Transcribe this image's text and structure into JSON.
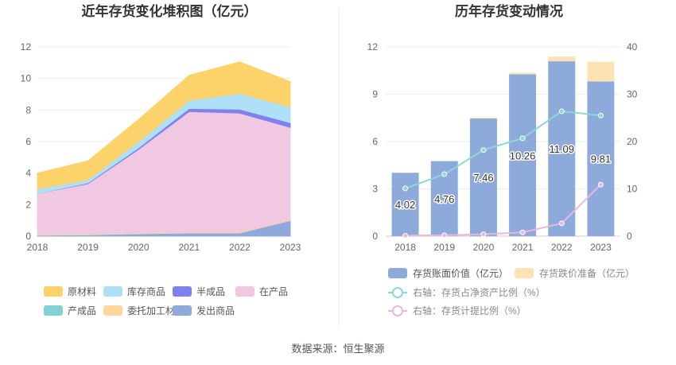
{
  "footer": {
    "source": "数据来源：恒生聚源"
  },
  "chart_data": [
    {
      "type": "area",
      "title": "近年存货变化堆积图（亿元）",
      "x": [
        "2018",
        "2019",
        "2020",
        "2021",
        "2022",
        "2023"
      ],
      "ylim": [
        0,
        12
      ],
      "yticks": [
        "0",
        "2",
        "4",
        "6",
        "8",
        "10",
        "12"
      ],
      "grid": true,
      "legend_placement": "bottom",
      "series": [
        {
          "name": "发出商品",
          "color": "#8eaadb",
          "values": [
            0.05,
            0.08,
            0.15,
            0.2,
            0.2,
            1.0
          ]
        },
        {
          "name": "委托加工材料",
          "color": "#fdd89a",
          "values": [
            0.05,
            0.05,
            0.05,
            0.05,
            0.05,
            0.05
          ]
        },
        {
          "name": "产成品",
          "color": "#7fd3d4",
          "values": [
            0.0,
            0.0,
            0.0,
            0.0,
            0.0,
            0.0
          ]
        },
        {
          "name": "在产品",
          "color": "#f0c8e2",
          "values": [
            2.6,
            3.2,
            5.3,
            7.65,
            7.55,
            5.85
          ]
        },
        {
          "name": "半成品",
          "color": "#8080f0",
          "values": [
            0.0,
            0.05,
            0.1,
            0.2,
            0.25,
            0.3
          ]
        },
        {
          "name": "库存商品",
          "color": "#aee0f7",
          "values": [
            0.3,
            0.2,
            0.4,
            0.5,
            1.0,
            1.0
          ]
        },
        {
          "name": "原材料",
          "color": "#fcd36a",
          "values": [
            1.0,
            1.2,
            1.4,
            1.6,
            2.0,
            1.6
          ]
        }
      ],
      "legend_order": [
        "原材料",
        "库存商品",
        "半成品",
        "在产品",
        "产成品",
        "委托加工材料",
        "发出商品"
      ]
    },
    {
      "type": "bar",
      "title": "历年存货变动情况",
      "categories": [
        "2018",
        "2019",
        "2020",
        "2021",
        "2022",
        "2023"
      ],
      "ylim_left": [
        0,
        12
      ],
      "yticks_left": [
        "0",
        "3",
        "6",
        "9",
        "12"
      ],
      "ylim_right": [
        0,
        40
      ],
      "yticks_right": [
        "0",
        "10",
        "20",
        "30",
        "40"
      ],
      "grid": true,
      "legend_placement": "bottom",
      "series": [
        {
          "name": "存货账面价值（亿元）",
          "type": "bar",
          "axis": "left",
          "color": "#8eaadb",
          "values": [
            4.02,
            4.76,
            7.46,
            10.26,
            11.09,
            9.81
          ],
          "labels": [
            "4.02",
            "4.76",
            "7.46",
            "10.26",
            "11.09",
            "9.81"
          ]
        },
        {
          "name": "存货跌价准备（亿元）",
          "type": "bar",
          "axis": "left",
          "color": "#fde3b4",
          "values": [
            0.0,
            0.0,
            0.05,
            0.1,
            0.3,
            1.25
          ]
        },
        {
          "name": "右轴：存货占净资产比例（%）",
          "type": "line",
          "axis": "right",
          "color": "#8fd6d6",
          "values": [
            10.1,
            13.1,
            18.2,
            20.7,
            26.4,
            25.5
          ]
        },
        {
          "name": "右轴：存货计提比例（%）",
          "type": "line",
          "axis": "right",
          "color": "#e8b8dd",
          "values": [
            0.1,
            0.2,
            0.4,
            0.8,
            2.7,
            10.9
          ]
        }
      ]
    }
  ]
}
